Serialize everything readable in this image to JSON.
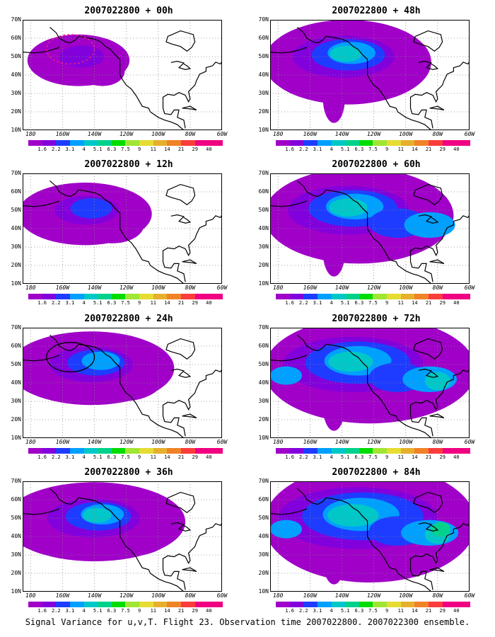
{
  "panels": [
    {
      "title": "2007022800 + 00h",
      "level": 0,
      "ring": "dashed"
    },
    {
      "title": "2007022800 + 48h",
      "level": 3,
      "ring": ""
    },
    {
      "title": "2007022800 + 12h",
      "level": 1,
      "ring": ""
    },
    {
      "title": "2007022800 + 60h",
      "level": 4,
      "ring": ""
    },
    {
      "title": "2007022800 + 24h",
      "level": 2,
      "ring": "solid"
    },
    {
      "title": "2007022800 + 72h",
      "level": 5,
      "ring": ""
    },
    {
      "title": "2007022800 + 36h",
      "level": 2.5,
      "ring": ""
    },
    {
      "title": "2007022800 + 84h",
      "level": 6,
      "ring": ""
    }
  ],
  "lat_labels": [
    "70N",
    "60N",
    "50N",
    "40N",
    "30N",
    "20N",
    "10N"
  ],
  "lon_labels": [
    "180",
    "160W",
    "140W",
    "120W",
    "100W",
    "80W",
    "60W"
  ],
  "colorbar": {
    "labels": [
      "1.6",
      "2.2",
      "3.1",
      "4",
      "5.1",
      "6.3",
      "7.5",
      "9",
      "11",
      "14",
      "21",
      "29",
      "40"
    ],
    "colors": [
      "#a000c8",
      "#8200dc",
      "#1e3cff",
      "#00a0ff",
      "#00c8c8",
      "#00d28c",
      "#00dc00",
      "#a0e632",
      "#e6dc32",
      "#e6af2d",
      "#f08228",
      "#fa3c3c",
      "#f00082"
    ]
  },
  "footer": "Signal Variance for u,v,T. Flight 23. Observation time 2007022800. 2007022300 ensemble."
}
